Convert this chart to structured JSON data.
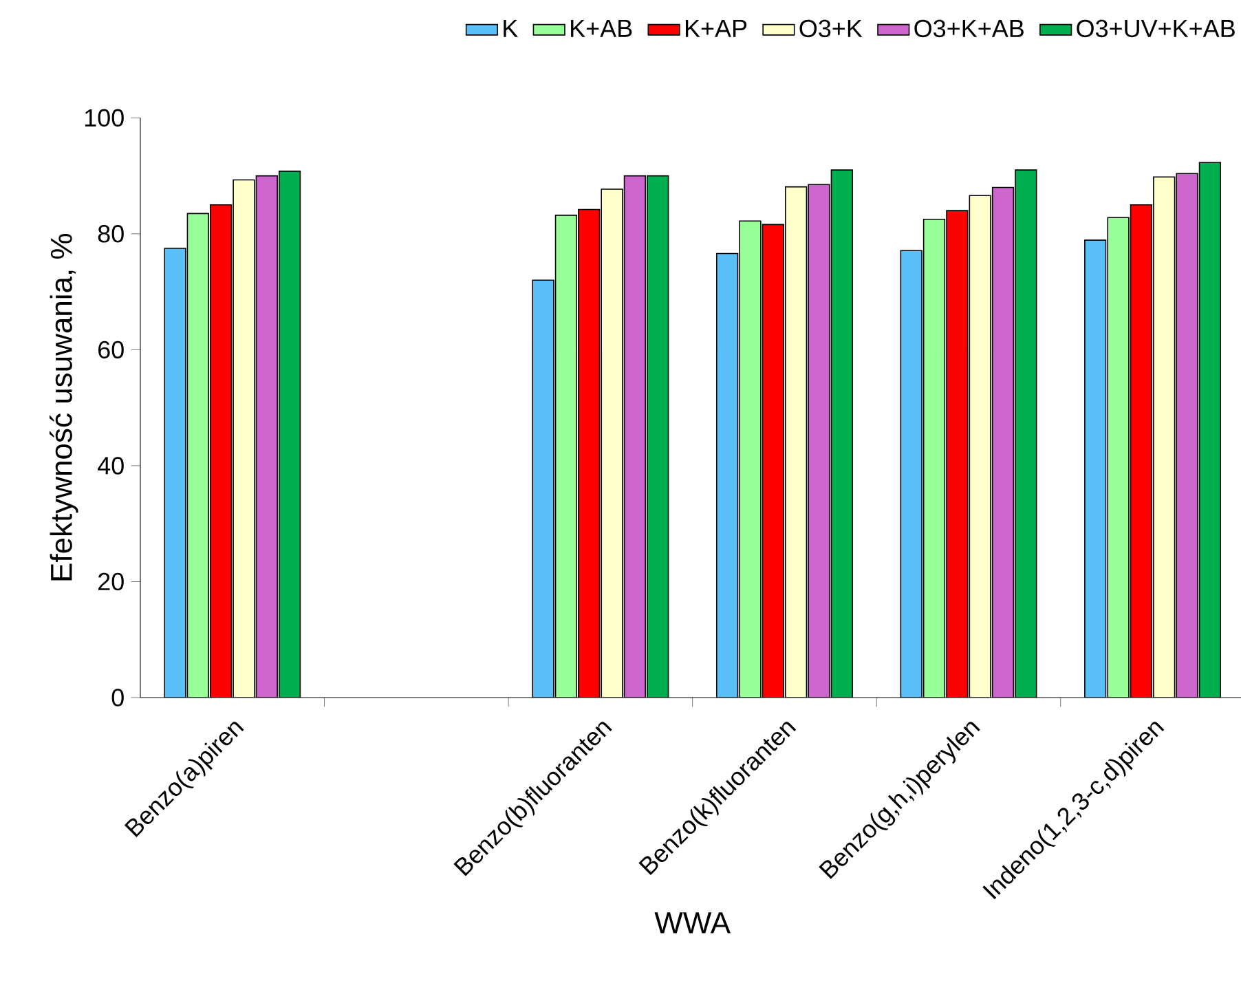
{
  "chart_data": {
    "type": "bar",
    "xlabel": "WWA",
    "ylabel": "Efektywność usuwania, %",
    "categories": [
      "Benzo(a)piren",
      null,
      "Benzo(b)fluoranten",
      "Benzo(k)fluoranten",
      "Benzo(g,h,i)perylen",
      "Indeno(1,2,3-c,d)piren"
    ],
    "series": [
      {
        "name": "K",
        "color": "#5bc0f8",
        "values": [
          77.5,
          null,
          72,
          76.6,
          77.1,
          78.9
        ]
      },
      {
        "name": "K+AB",
        "color": "#99ff99",
        "values": [
          83.5,
          null,
          83.2,
          82.2,
          82.5,
          82.8
        ]
      },
      {
        "name": "K+AP",
        "color": "#ff0000",
        "values": [
          85,
          null,
          84.2,
          81.6,
          84,
          85
        ]
      },
      {
        "name": "O3+K",
        "color": "#ffffcc",
        "values": [
          89.3,
          null,
          87.7,
          88.1,
          86.6,
          89.8
        ]
      },
      {
        "name": "O3+K+AB",
        "color": "#cc66cc",
        "values": [
          90,
          null,
          90,
          88.5,
          88,
          90.4
        ]
      },
      {
        "name": "O3+UV+K+AB",
        "color": "#00b050",
        "values": [
          90.8,
          null,
          90,
          91,
          91,
          92.3
        ]
      }
    ],
    "ylim": [
      0,
      100
    ],
    "yticks": [
      0,
      20,
      40,
      60,
      80,
      100
    ],
    "grid": false,
    "legend": "top"
  }
}
